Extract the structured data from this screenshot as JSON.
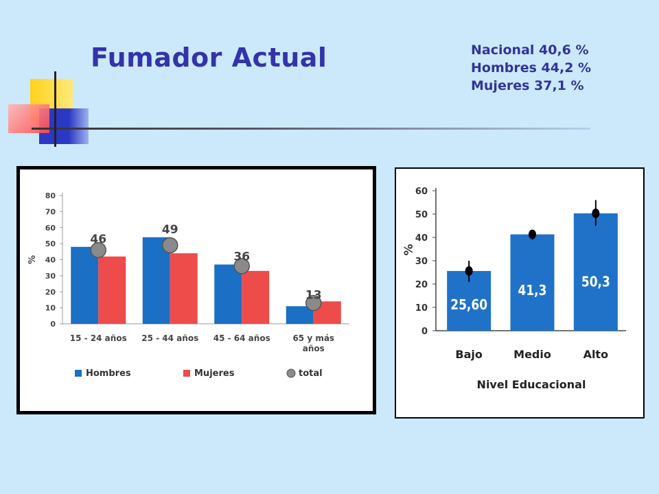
{
  "slide": {
    "title": "Fumador Actual",
    "stats": [
      "Nacional 40,6  %",
      "Hombres 44,2  %",
      "Mujeres 37,1  %"
    ]
  },
  "colors": {
    "background": "#cce9fb",
    "title": "#3333aa",
    "hombres": "#1b6fc4",
    "mujeres": "#ee4b4b",
    "total": "#8a8a8a",
    "educ_bar": "#1f72c8"
  },
  "chart_data": [
    {
      "type": "bar",
      "ylabel": "%",
      "ylim": [
        0,
        80
      ],
      "yticks": [
        0,
        10,
        20,
        30,
        40,
        50,
        60,
        70,
        80
      ],
      "categories": [
        [
          "15 - 24 años"
        ],
        [
          "25 - 44 años"
        ],
        [
          "45 - 64 años"
        ],
        [
          "65 y más",
          "años"
        ]
      ],
      "series": [
        {
          "name": "Hombres",
          "values": [
            48,
            54,
            37,
            11
          ]
        },
        {
          "name": "Mujeres",
          "values": [
            42,
            44,
            33,
            14
          ]
        }
      ],
      "total": {
        "name": "total",
        "values": [
          46,
          49,
          36,
          13
        ],
        "labels": [
          "46",
          "49",
          "36",
          "13"
        ]
      },
      "legend": "bottom",
      "grid": false
    },
    {
      "type": "bar",
      "xlabel": "Nivel Educacional",
      "ylabel": "%",
      "ylim": [
        0,
        60
      ],
      "yticks": [
        0,
        10,
        20,
        30,
        40,
        50,
        60
      ],
      "categories": [
        "Bajo",
        "Medio",
        "Alto"
      ],
      "values": [
        25.6,
        41.3,
        50.3
      ],
      "value_labels": [
        "25,60",
        "41,3",
        "50,3"
      ],
      "error_bars": [
        [
          21,
          30
        ],
        [
          39,
          43
        ],
        [
          45,
          56
        ]
      ],
      "grid": false
    }
  ]
}
